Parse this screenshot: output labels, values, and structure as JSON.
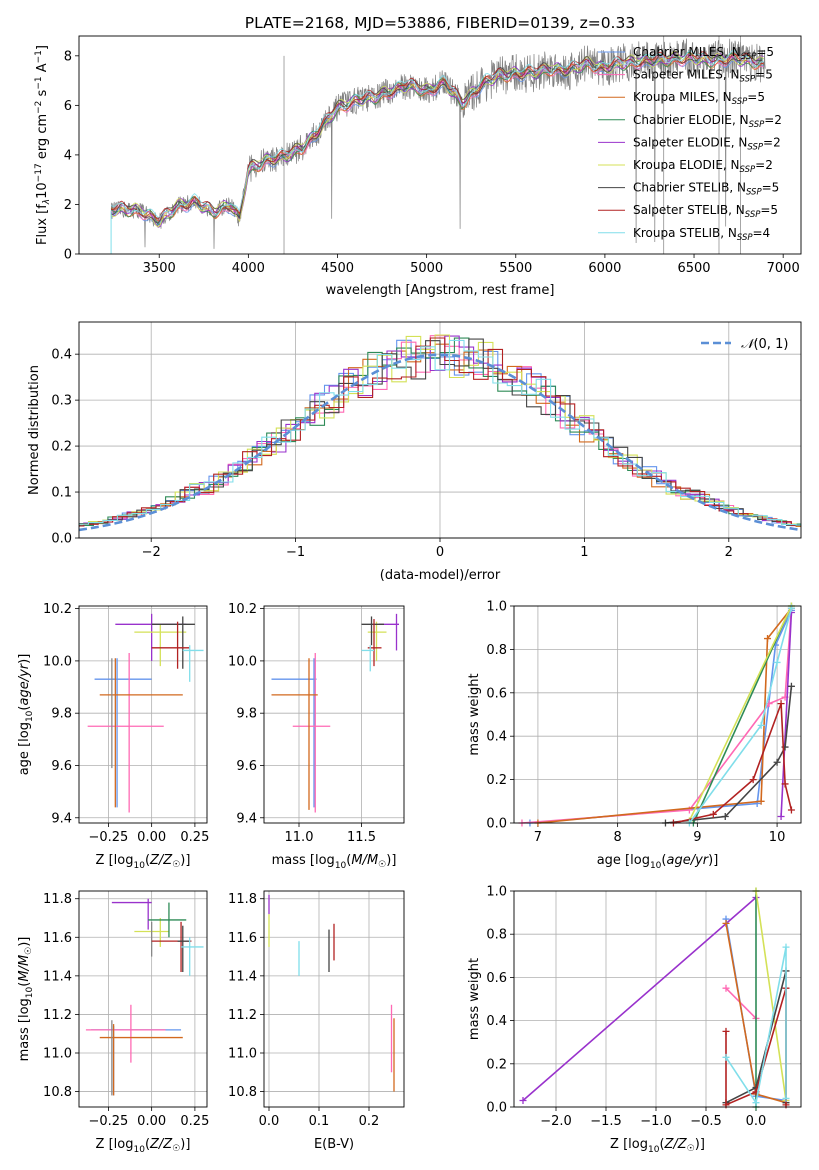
{
  "chart_data": [
    {
      "id": "spectrum",
      "type": "line",
      "title": "PLATE=2168, MJD=53886, FIBERID=0139, z=0.33",
      "xlabel": "wavelength [Angstrom, rest frame]",
      "ylabel": "Flux [f$_\\lambda$10$^{-17}$ erg cm$^{-2}$ s$^{-1}$ A$^{-1}$]",
      "xlim": [
        3050,
        7100
      ],
      "ylim": [
        0,
        8.8
      ],
      "xticks": [
        3500,
        4000,
        4500,
        5000,
        5500,
        6000,
        6500,
        7000
      ],
      "yticks": [
        0,
        2,
        4,
        6,
        8
      ],
      "grid": false,
      "legend_position": "top-right",
      "legend": [
        {
          "label": "Chabrier MILES, N",
          "sub": "SSP",
          "suffix": "=5",
          "color": "#6495ed"
        },
        {
          "label": "Salpeter MILES, N",
          "sub": "SSP",
          "suffix": "=5",
          "color": "#ff69b4"
        },
        {
          "label": "Kroupa MILES, N",
          "sub": "SSP",
          "suffix": "=5",
          "color": "#d2691e"
        },
        {
          "label": "Chabrier ELODIE, N",
          "sub": "SSP",
          "suffix": "=2",
          "color": "#2e8b57"
        },
        {
          "label": "Salpeter ELODIE, N",
          "sub": "SSP",
          "suffix": "=2",
          "color": "#9932cc"
        },
        {
          "label": "Kroupa ELODIE, N",
          "sub": "SSP",
          "suffix": "=2",
          "color": "#d4e157"
        },
        {
          "label": "Chabrier STELIB, N",
          "sub": "SSP",
          "suffix": "=5",
          "color": "#444444"
        },
        {
          "label": "Salpeter STELIB, N",
          "sub": "SSP",
          "suffix": "=5",
          "color": "#b22222"
        },
        {
          "label": "Kroupa STELIB, N",
          "sub": "SSP",
          "suffix": "=4",
          "color": "#80deea"
        }
      ],
      "continuum_points": [
        [
          3230,
          1.75
        ],
        [
          3300,
          1.8
        ],
        [
          3400,
          1.75
        ],
        [
          3500,
          1.3
        ],
        [
          3600,
          1.95
        ],
        [
          3700,
          2.1
        ],
        [
          3800,
          1.7
        ],
        [
          3900,
          2.0
        ],
        [
          3950,
          1.4
        ],
        [
          4000,
          3.4
        ],
        [
          4100,
          3.8
        ],
        [
          4200,
          3.9
        ],
        [
          4300,
          4.3
        ],
        [
          4400,
          5.0
        ],
        [
          4500,
          5.9
        ],
        [
          4600,
          6.2
        ],
        [
          4700,
          6.3
        ],
        [
          4800,
          6.6
        ],
        [
          4900,
          6.8
        ],
        [
          5000,
          6.6
        ],
        [
          5100,
          6.9
        ],
        [
          5200,
          6.1
        ],
        [
          5300,
          6.8
        ],
        [
          5400,
          7.2
        ],
        [
          5500,
          7.3
        ],
        [
          5600,
          7.3
        ],
        [
          5700,
          7.5
        ],
        [
          5800,
          7.4
        ],
        [
          5900,
          7.7
        ],
        [
          6000,
          7.5
        ],
        [
          6100,
          7.7
        ],
        [
          6200,
          7.8
        ],
        [
          6300,
          7.8
        ],
        [
          6400,
          7.9
        ],
        [
          6500,
          7.9
        ],
        [
          6600,
          7.8
        ],
        [
          6700,
          7.9
        ],
        [
          6800,
          7.8
        ],
        [
          6900,
          7.7
        ]
      ],
      "data_range": [
        3230,
        6900
      ]
    },
    {
      "id": "residuals",
      "type": "histogram",
      "xlabel": "(data-model)/error",
      "ylabel": "Normed distribution",
      "xlim": [
        -2.5,
        2.5
      ],
      "ylim": [
        0,
        0.47
      ],
      "xticks": [
        -2,
        -1,
        0,
        1,
        2
      ],
      "yticks": [
        0.0,
        0.1,
        0.2,
        0.3,
        0.4
      ],
      "grid": true,
      "legend_position": "top-right",
      "reference_curve": {
        "label": "N(0, 1)",
        "color": "#5b8fd6"
      }
    },
    {
      "id": "age_vs_Z",
      "type": "errorbar",
      "xlabel": "Z [log$_{10}$(Z/Z$_\\odot$)]",
      "ylabel": "age  [log$_{10}$(age/yr)]",
      "xlim": [
        -0.42,
        0.32
      ],
      "ylim": [
        9.38,
        10.21
      ],
      "xticks": [
        -0.25,
        0.0,
        0.25
      ],
      "yticks": [
        9.4,
        9.6,
        9.8,
        10.0,
        10.2
      ],
      "points": [
        {
          "x": -0.2,
          "y": 9.93,
          "xlo": -0.33,
          "xhi": 0.0,
          "ylo": 9.44,
          "yhi": 10.01,
          "color": "#6495ed"
        },
        {
          "x": -0.13,
          "y": 9.75,
          "xlo": -0.37,
          "xhi": 0.07,
          "ylo": 9.42,
          "yhi": 10.03,
          "color": "#ff69b4"
        },
        {
          "x": -0.21,
          "y": 9.87,
          "xlo": -0.3,
          "xhi": 0.18,
          "ylo": 9.44,
          "yhi": 10.01,
          "color": "#d2691e"
        },
        {
          "x": 0.0,
          "y": 10.14,
          "xlo": -0.21,
          "xhi": 0.2,
          "ylo": 10.0,
          "yhi": 10.18,
          "color": "#9932cc"
        },
        {
          "x": 0.05,
          "y": 10.11,
          "xlo": -0.1,
          "xhi": 0.2,
          "ylo": 9.98,
          "yhi": 10.14,
          "color": "#d4e157"
        },
        {
          "x": 0.18,
          "y": 10.14,
          "xlo": 0.0,
          "xhi": 0.25,
          "ylo": 9.97,
          "yhi": 10.17,
          "color": "#444444"
        },
        {
          "x": 0.15,
          "y": 10.05,
          "xlo": 0.0,
          "xhi": 0.22,
          "ylo": 9.97,
          "yhi": 10.15,
          "color": "#b22222"
        },
        {
          "x": 0.22,
          "y": 10.04,
          "xlo": 0.18,
          "xhi": 0.3,
          "ylo": 9.92,
          "yhi": 10.06,
          "color": "#80deea"
        },
        {
          "x": -0.23,
          "y": 9.83,
          "xlo": -0.23,
          "xhi": -0.23,
          "ylo": 9.59,
          "yhi": 10.01,
          "color": "#888888"
        }
      ]
    },
    {
      "id": "age_vs_mass",
      "type": "errorbar",
      "xlabel": "mass [log$_{10}$(M/M$_\\odot$)]",
      "ylabel": "",
      "xlim": [
        10.72,
        11.84
      ],
      "ylim": [
        9.38,
        10.21
      ],
      "xticks": [
        11.0,
        11.5
      ],
      "yticks": [
        9.4,
        9.6,
        9.8,
        10.0,
        10.2
      ],
      "points": [
        {
          "x": 11.12,
          "y": 9.93,
          "xlo": 10.78,
          "xhi": 11.14,
          "ylo": 9.44,
          "yhi": 10.01,
          "color": "#6495ed"
        },
        {
          "x": 11.13,
          "y": 9.75,
          "xlo": 10.95,
          "xhi": 11.25,
          "ylo": 9.42,
          "yhi": 10.03,
          "color": "#ff69b4"
        },
        {
          "x": 11.08,
          "y": 9.87,
          "xlo": 10.78,
          "xhi": 11.15,
          "ylo": 9.43,
          "yhi": 10.01,
          "color": "#d2691e"
        },
        {
          "x": 11.78,
          "y": 10.14,
          "xlo": 11.64,
          "xhi": 11.8,
          "ylo": 10.04,
          "yhi": 10.18,
          "color": "#9932cc"
        },
        {
          "x": 11.62,
          "y": 10.11,
          "xlo": 11.55,
          "xhi": 11.7,
          "ylo": 10.0,
          "yhi": 10.15,
          "color": "#d4e157"
        },
        {
          "x": 11.58,
          "y": 10.14,
          "xlo": 11.5,
          "xhi": 11.68,
          "ylo": 10.06,
          "yhi": 10.17,
          "color": "#444444"
        },
        {
          "x": 11.6,
          "y": 10.05,
          "xlo": 11.55,
          "xhi": 11.66,
          "ylo": 9.98,
          "yhi": 10.16,
          "color": "#b22222"
        },
        {
          "x": 11.57,
          "y": 10.04,
          "xlo": 11.5,
          "xhi": 11.6,
          "ylo": 9.96,
          "yhi": 10.06,
          "color": "#80deea"
        }
      ]
    },
    {
      "id": "weight_vs_age",
      "type": "line",
      "xlabel": "age  [log$_{10}$(age/yr)]",
      "ylabel": "mass weight",
      "xlim": [
        6.7,
        10.3
      ],
      "ylim": [
        0,
        1
      ],
      "xticks": [
        7,
        8,
        9,
        10
      ],
      "yticks": [
        0.0,
        0.2,
        0.4,
        0.6,
        0.8,
        1.0
      ],
      "grid": true,
      "series": [
        {
          "color": "#6495ed",
          "points": [
            [
              6.9,
              0.0
            ],
            [
              9.75,
              0.09
            ],
            [
              9.98,
              0.82
            ],
            [
              10.18,
              0.98
            ]
          ]
        },
        {
          "color": "#ff69b4",
          "points": [
            [
              6.8,
              0.0
            ],
            [
              8.9,
              0.06
            ],
            [
              9.9,
              0.55
            ],
            [
              10.1,
              0.58
            ],
            [
              10.18,
              0.99
            ]
          ]
        },
        {
          "color": "#d2691e",
          "points": [
            [
              7.0,
              0.0
            ],
            [
              9.8,
              0.1
            ],
            [
              9.88,
              0.85
            ],
            [
              10.18,
              0.99
            ]
          ]
        },
        {
          "color": "#2e8b57",
          "points": [
            [
              8.95,
              0.0
            ],
            [
              10.18,
              1.0
            ]
          ]
        },
        {
          "color": "#9932cc",
          "points": [
            [
              10.05,
              0.03
            ],
            [
              10.18,
              0.97
            ]
          ]
        },
        {
          "color": "#d4e157",
          "points": [
            [
              8.9,
              0.01
            ],
            [
              10.18,
              1.0
            ]
          ]
        },
        {
          "color": "#444444",
          "points": [
            [
              8.6,
              0.0
            ],
            [
              9.35,
              0.03
            ],
            [
              10.0,
              0.28
            ],
            [
              10.1,
              0.35
            ],
            [
              10.18,
              0.63
            ]
          ]
        },
        {
          "color": "#b22222",
          "points": [
            [
              8.7,
              0.0
            ],
            [
              9.2,
              0.04
            ],
            [
              9.7,
              0.2
            ],
            [
              10.05,
              0.55
            ],
            [
              10.1,
              0.18
            ],
            [
              10.18,
              0.06
            ]
          ]
        },
        {
          "color": "#80deea",
          "points": [
            [
              8.9,
              0.0
            ],
            [
              9.8,
              0.45
            ],
            [
              10.0,
              0.74
            ],
            [
              10.18,
              0.99
            ]
          ]
        }
      ]
    },
    {
      "id": "mass_vs_Z",
      "type": "errorbar",
      "xlabel": "Z [log$_{10}$(Z/Z$_\\odot$)]",
      "ylabel": "mass [log$_{10}$(M/M$_\\odot$)]",
      "xlim": [
        -0.42,
        0.32
      ],
      "ylim": [
        10.72,
        11.84
      ],
      "xticks": [
        -0.25,
        0.0,
        0.25
      ],
      "yticks": [
        10.8,
        11.0,
        11.2,
        11.4,
        11.6,
        11.8
      ],
      "points": [
        {
          "x": -0.22,
          "y": 11.12,
          "xlo": -0.35,
          "xhi": 0.17,
          "ylo": 10.78,
          "yhi": 11.14,
          "color": "#6495ed"
        },
        {
          "x": -0.12,
          "y": 11.12,
          "xlo": -0.38,
          "xhi": 0.08,
          "ylo": 10.95,
          "yhi": 11.25,
          "color": "#ff69b4"
        },
        {
          "x": -0.22,
          "y": 11.08,
          "xlo": -0.3,
          "xhi": 0.18,
          "ylo": 10.78,
          "yhi": 11.15,
          "color": "#d2691e"
        },
        {
          "x": -0.02,
          "y": 11.78,
          "xlo": -0.23,
          "xhi": 0.0,
          "ylo": 11.64,
          "yhi": 11.8,
          "color": "#9932cc"
        },
        {
          "x": 0.05,
          "y": 11.63,
          "xlo": -0.1,
          "xhi": 0.1,
          "ylo": 11.55,
          "yhi": 11.7,
          "color": "#d4e157"
        },
        {
          "x": 0.0,
          "y": 11.6,
          "xlo": 0.0,
          "xhi": 0.0,
          "ylo": 11.5,
          "yhi": 11.68,
          "color": "#888888"
        },
        {
          "x": 0.1,
          "y": 11.69,
          "xlo": -0.02,
          "xhi": 0.2,
          "ylo": 11.6,
          "yhi": 11.78,
          "color": "#2e8b57"
        },
        {
          "x": 0.17,
          "y": 11.58,
          "xlo": 0.0,
          "xhi": 0.23,
          "ylo": 11.42,
          "yhi": 11.68,
          "color": "#b22222"
        },
        {
          "x": 0.18,
          "y": 11.58,
          "xlo": 0.15,
          "xhi": 0.22,
          "ylo": 11.42,
          "yhi": 11.66,
          "color": "#444444"
        },
        {
          "x": 0.22,
          "y": 11.55,
          "xlo": 0.17,
          "xhi": 0.3,
          "ylo": 11.4,
          "yhi": 11.6,
          "color": "#80deea"
        },
        {
          "x": -0.23,
          "y": 11.0,
          "xlo": -0.23,
          "xhi": -0.23,
          "ylo": 10.78,
          "yhi": 11.17,
          "color": "#888888"
        }
      ]
    },
    {
      "id": "mass_vs_EBV",
      "type": "errorbar",
      "xlabel": "E(B-V)",
      "ylabel": "",
      "xlim": [
        -0.01,
        0.27
      ],
      "ylim": [
        10.72,
        11.84
      ],
      "xticks": [
        0.0,
        0.1,
        0.2
      ],
      "yticks": [
        10.8,
        11.0,
        11.2,
        11.4,
        11.6,
        11.8
      ],
      "points": [
        {
          "x": 0.0,
          "y": 11.78,
          "xlo": 0.0,
          "xhi": 0.0,
          "ylo": 11.72,
          "yhi": 11.82,
          "color": "#9932cc"
        },
        {
          "x": 0.0,
          "y": 11.63,
          "xlo": 0.0,
          "xhi": 0.0,
          "ylo": 11.55,
          "yhi": 11.72,
          "color": "#d4e157"
        },
        {
          "x": 0.06,
          "y": 11.5,
          "xlo": 0.06,
          "xhi": 0.06,
          "ylo": 11.4,
          "yhi": 11.58,
          "color": "#80deea"
        },
        {
          "x": 0.12,
          "y": 11.5,
          "xlo": 0.12,
          "xhi": 0.12,
          "ylo": 11.42,
          "yhi": 11.64,
          "color": "#444444"
        },
        {
          "x": 0.13,
          "y": 11.56,
          "xlo": 0.13,
          "xhi": 0.13,
          "ylo": 11.48,
          "yhi": 11.67,
          "color": "#b22222"
        },
        {
          "x": 0.245,
          "y": 11.08,
          "xlo": 0.245,
          "xhi": 0.245,
          "ylo": 10.9,
          "yhi": 11.25,
          "color": "#ff69b4"
        },
        {
          "x": 0.25,
          "y": 10.98,
          "xlo": 0.25,
          "xhi": 0.25,
          "ylo": 10.8,
          "yhi": 11.18,
          "color": "#d2691e"
        }
      ]
    },
    {
      "id": "weight_vs_Z",
      "type": "line",
      "xlabel": "Z [log$_{10}$(Z/Z$_\\odot$)]",
      "ylabel": "mass weight",
      "xlim": [
        -2.42,
        0.45
      ],
      "ylim": [
        0,
        1
      ],
      "xticks": [
        -2.0,
        -1.5,
        -1.0,
        -0.5,
        0.0
      ],
      "yticks": [
        0.0,
        0.2,
        0.4,
        0.6,
        0.8,
        1.0
      ],
      "grid": true,
      "series": [
        {
          "color": "#9932cc",
          "points": [
            [
              -2.33,
              0.03
            ],
            [
              0.0,
              0.97
            ]
          ]
        },
        {
          "color": "#6495ed",
          "points": [
            [
              -0.3,
              0.87
            ],
            [
              0.0,
              0.05
            ],
            [
              0.3,
              0.03
            ]
          ]
        },
        {
          "color": "#ff69b4",
          "points": [
            [
              -0.3,
              0.55
            ],
            [
              0.0,
              0.41
            ]
          ]
        },
        {
          "color": "#d2691e",
          "points": [
            [
              -0.3,
              0.85
            ],
            [
              0.0,
              0.06
            ],
            [
              0.3,
              0.02
            ]
          ]
        },
        {
          "color": "#2e8b57",
          "points": [
            [
              0.0,
              1.0
            ],
            [
              0.0,
              0.0
            ]
          ]
        },
        {
          "color": "#d4e157",
          "points": [
            [
              0.0,
              1.0
            ],
            [
              0.3,
              0.03
            ]
          ]
        },
        {
          "color": "#444444",
          "points": [
            [
              -0.3,
              0.02
            ],
            [
              0.0,
              0.09
            ],
            [
              0.3,
              0.63
            ],
            [
              0.3,
              0.02
            ]
          ]
        },
        {
          "color": "#b22222",
          "points": [
            [
              -0.3,
              0.35
            ],
            [
              -0.3,
              0.01
            ],
            [
              0.0,
              0.07
            ],
            [
              0.3,
              0.55
            ],
            [
              0.3,
              0.01
            ]
          ]
        },
        {
          "color": "#80deea",
          "points": [
            [
              -0.3,
              0.23
            ],
            [
              0.0,
              0.02
            ],
            [
              0.3,
              0.74
            ],
            [
              0.3,
              0.04
            ]
          ]
        }
      ]
    }
  ]
}
